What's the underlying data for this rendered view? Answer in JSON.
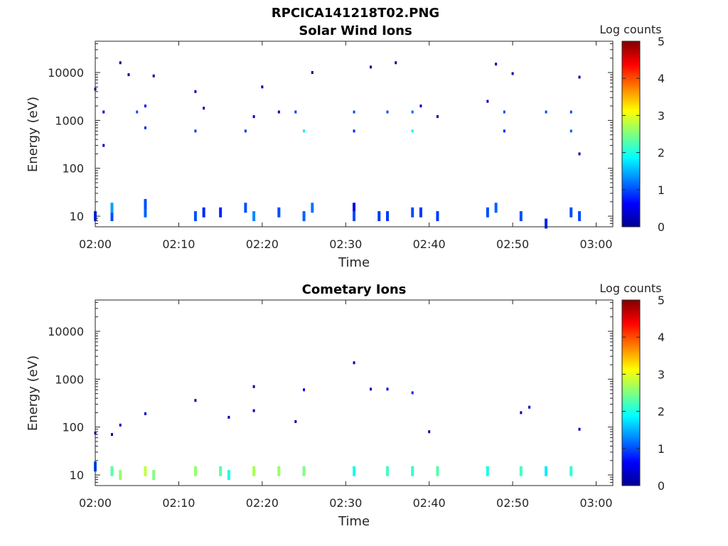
{
  "figure_title": "RPCICA141218T02.PNG",
  "colorbar": {
    "label": "Log counts",
    "range": [
      0,
      5
    ],
    "ticks": [
      "0",
      "1",
      "2",
      "3",
      "4",
      "5"
    ],
    "colormap": "jet"
  },
  "chart_data": [
    {
      "type": "heatmap",
      "title": "Solar Wind Ions",
      "xlabel": "Time",
      "ylabel": "Energy (eV)",
      "y_scale": "log",
      "xlim": [
        "02:00",
        "03:02"
      ],
      "ylim": [
        6,
        45000
      ],
      "x_ticks": [
        "02:00",
        "02:10",
        "02:20",
        "02:30",
        "02:40",
        "02:50",
        "03:00"
      ],
      "y_ticks": [
        "10",
        "100",
        "1000",
        "10000"
      ],
      "cells": [
        {
          "t": "02:00",
          "e": 4500,
          "v": 0.2
        },
        {
          "t": "02:01",
          "e": 1500,
          "v": 0.4
        },
        {
          "t": "02:01",
          "e": 300,
          "v": 0.3
        },
        {
          "t": "02:03",
          "e": 16000,
          "v": 0.2
        },
        {
          "t": "02:04",
          "e": 9000,
          "v": 0.2
        },
        {
          "t": "02:05",
          "e": 1500,
          "v": 1.0
        },
        {
          "t": "02:06",
          "e": 700,
          "v": 0.8
        },
        {
          "t": "02:06",
          "e": 2000,
          "v": 0.7
        },
        {
          "t": "02:07",
          "e": 8500,
          "v": 0.2
        },
        {
          "t": "02:12",
          "e": 600,
          "v": 0.9
        },
        {
          "t": "02:12",
          "e": 4000,
          "v": 0.3
        },
        {
          "t": "02:13",
          "e": 1800,
          "v": 0.4
        },
        {
          "t": "02:18",
          "e": 600,
          "v": 0.9
        },
        {
          "t": "02:19",
          "e": 1200,
          "v": 0.4
        },
        {
          "t": "02:20",
          "e": 5000,
          "v": 0.2
        },
        {
          "t": "02:22",
          "e": 1500,
          "v": 0.3
        },
        {
          "t": "02:24",
          "e": 1500,
          "v": 0.9
        },
        {
          "t": "02:25",
          "e": 600,
          "v": 1.8
        },
        {
          "t": "02:26",
          "e": 10000,
          "v": 0.2
        },
        {
          "t": "02:31",
          "e": 1500,
          "v": 1.0
        },
        {
          "t": "02:31",
          "e": 600,
          "v": 0.8
        },
        {
          "t": "02:33",
          "e": 13000,
          "v": 0.2
        },
        {
          "t": "02:35",
          "e": 1500,
          "v": 1.0
        },
        {
          "t": "02:36",
          "e": 16000,
          "v": 0.2
        },
        {
          "t": "02:38",
          "e": 600,
          "v": 1.8
        },
        {
          "t": "02:38",
          "e": 1500,
          "v": 1.1
        },
        {
          "t": "02:39",
          "e": 2000,
          "v": 0.4
        },
        {
          "t": "02:41",
          "e": 1200,
          "v": 0.3
        },
        {
          "t": "02:47",
          "e": 2500,
          "v": 0.3
        },
        {
          "t": "02:48",
          "e": 15000,
          "v": 0.2
        },
        {
          "t": "02:49",
          "e": 600,
          "v": 0.8
        },
        {
          "t": "02:49",
          "e": 1500,
          "v": 1.0
        },
        {
          "t": "02:50",
          "e": 9500,
          "v": 0.2
        },
        {
          "t": "02:54",
          "e": 1500,
          "v": 1.0
        },
        {
          "t": "02:57",
          "e": 600,
          "v": 1.1
        },
        {
          "t": "02:57",
          "e": 1500,
          "v": 1.0
        },
        {
          "t": "02:58",
          "e": 8000,
          "v": 0.2
        },
        {
          "t": "02:58",
          "e": 200,
          "v": 0.3
        },
        {
          "t": "02:00",
          "e": 10,
          "v": 0.8
        },
        {
          "t": "02:02",
          "e": 10,
          "v": 1.0
        },
        {
          "t": "02:02",
          "e": 15,
          "v": 1.4
        },
        {
          "t": "02:06",
          "e": 12,
          "v": 1.1
        },
        {
          "t": "02:06",
          "e": 18,
          "v": 1.0
        },
        {
          "t": "02:12",
          "e": 10,
          "v": 1.0
        },
        {
          "t": "02:13",
          "e": 12,
          "v": 0.8
        },
        {
          "t": "02:15",
          "e": 12,
          "v": 0.8
        },
        {
          "t": "02:18",
          "e": 15,
          "v": 1.0
        },
        {
          "t": "02:19",
          "e": 10,
          "v": 1.3
        },
        {
          "t": "02:22",
          "e": 12,
          "v": 1.0
        },
        {
          "t": "02:25",
          "e": 10,
          "v": 1.1
        },
        {
          "t": "02:26",
          "e": 15,
          "v": 1.2
        },
        {
          "t": "02:31",
          "e": 15,
          "v": 0.5
        },
        {
          "t": "02:31",
          "e": 10,
          "v": 1.0
        },
        {
          "t": "02:34",
          "e": 10,
          "v": 0.9
        },
        {
          "t": "02:35",
          "e": 10,
          "v": 0.9
        },
        {
          "t": "02:38",
          "e": 12,
          "v": 1.0
        },
        {
          "t": "02:39",
          "e": 12,
          "v": 0.9
        },
        {
          "t": "02:41",
          "e": 10,
          "v": 0.9
        },
        {
          "t": "02:47",
          "e": 12,
          "v": 1.0
        },
        {
          "t": "02:48",
          "e": 15,
          "v": 1.1
        },
        {
          "t": "02:51",
          "e": 10,
          "v": 1.0
        },
        {
          "t": "02:54",
          "e": 7,
          "v": 0.8
        },
        {
          "t": "02:57",
          "e": 12,
          "v": 1.0
        },
        {
          "t": "02:58",
          "e": 10,
          "v": 1.0
        }
      ]
    },
    {
      "type": "heatmap",
      "title": "Cometary Ions",
      "xlabel": "Time",
      "ylabel": "Energy (eV)",
      "y_scale": "log",
      "xlim": [
        "02:00",
        "03:02"
      ],
      "ylim": [
        6,
        45000
      ],
      "x_ticks": [
        "02:00",
        "02:10",
        "02:20",
        "02:30",
        "02:40",
        "02:50",
        "03:00"
      ],
      "y_ticks": [
        "10",
        "100",
        "1000",
        "10000"
      ],
      "cells": [
        {
          "t": "02:00",
          "e": 75,
          "v": 0.3
        },
        {
          "t": "02:02",
          "e": 70,
          "v": 0.2
        },
        {
          "t": "02:03",
          "e": 110,
          "v": 0.3
        },
        {
          "t": "02:06",
          "e": 190,
          "v": 0.3
        },
        {
          "t": "02:12",
          "e": 360,
          "v": 0.2
        },
        {
          "t": "02:16",
          "e": 160,
          "v": 0.2
        },
        {
          "t": "02:19",
          "e": 700,
          "v": 0.2
        },
        {
          "t": "02:19",
          "e": 220,
          "v": 0.3
        },
        {
          "t": "02:24",
          "e": 130,
          "v": 0.2
        },
        {
          "t": "02:25",
          "e": 600,
          "v": 0.6
        },
        {
          "t": "02:31",
          "e": 2200,
          "v": 0.3
        },
        {
          "t": "02:33",
          "e": 620,
          "v": 0.3
        },
        {
          "t": "02:35",
          "e": 620,
          "v": 0.6
        },
        {
          "t": "02:38",
          "e": 520,
          "v": 0.8
        },
        {
          "t": "02:40",
          "e": 80,
          "v": 0.2
        },
        {
          "t": "02:51",
          "e": 200,
          "v": 0.3
        },
        {
          "t": "02:52",
          "e": 260,
          "v": 0.3
        },
        {
          "t": "02:58",
          "e": 90,
          "v": 0.3
        },
        {
          "t": "02:00",
          "e": 15,
          "v": 1.0
        },
        {
          "t": "02:02",
          "e": 12,
          "v": 2.3
        },
        {
          "t": "02:03",
          "e": 10,
          "v": 2.6
        },
        {
          "t": "02:06",
          "e": 12,
          "v": 2.8
        },
        {
          "t": "02:07",
          "e": 10,
          "v": 2.5
        },
        {
          "t": "02:12",
          "e": 12,
          "v": 2.6
        },
        {
          "t": "02:15",
          "e": 12,
          "v": 2.3
        },
        {
          "t": "02:16",
          "e": 10,
          "v": 2.0
        },
        {
          "t": "02:19",
          "e": 12,
          "v": 2.7
        },
        {
          "t": "02:22",
          "e": 12,
          "v": 2.6
        },
        {
          "t": "02:25",
          "e": 12,
          "v": 2.5
        },
        {
          "t": "02:31",
          "e": 12,
          "v": 2.0
        },
        {
          "t": "02:35",
          "e": 12,
          "v": 2.2
        },
        {
          "t": "02:38",
          "e": 12,
          "v": 2.1
        },
        {
          "t": "02:41",
          "e": 12,
          "v": 2.3
        },
        {
          "t": "02:47",
          "e": 12,
          "v": 2.0
        },
        {
          "t": "02:51",
          "e": 12,
          "v": 2.2
        },
        {
          "t": "02:54",
          "e": 12,
          "v": 1.8
        },
        {
          "t": "02:57",
          "e": 12,
          "v": 2.1
        }
      ]
    }
  ]
}
